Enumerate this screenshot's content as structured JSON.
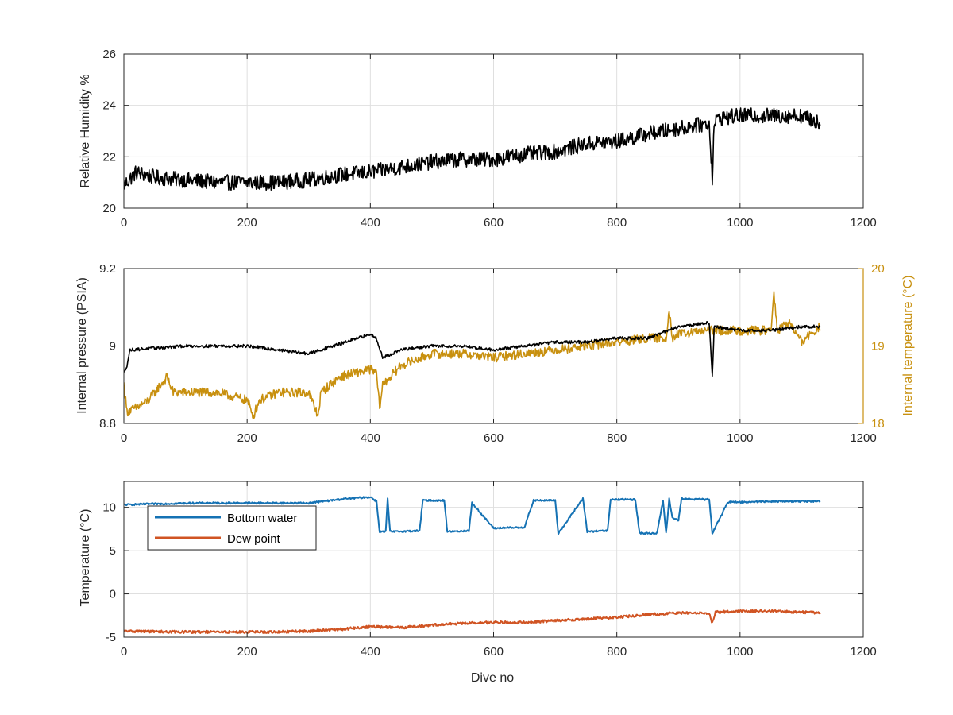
{
  "colors": {
    "humidity": "#000000",
    "pressure": "#000000",
    "internal_temperature": "#c8900f",
    "bottom_water": "#1572b4",
    "dew_point": "#d05423",
    "axis": "#262626",
    "grid": "#dfdfdf"
  },
  "chart_data": [
    {
      "type": "line",
      "title": "",
      "xlabel": "",
      "ylabel": "Relative Humidity %",
      "xlim": [
        0,
        1200
      ],
      "ylim": [
        20,
        26
      ],
      "xticks": [
        0,
        200,
        400,
        600,
        800,
        1000,
        1200
      ],
      "yticks": [
        20,
        22,
        24,
        26
      ],
      "grid": true,
      "series": [
        {
          "color": "#000000",
          "noise": 0.3,
          "x": [
            0,
            20,
            50,
            100,
            150,
            200,
            250,
            300,
            350,
            400,
            450,
            500,
            550,
            600,
            650,
            700,
            750,
            800,
            850,
            900,
            950,
            955,
            958,
            965,
            1000,
            1050,
            1100,
            1130
          ],
          "y": [
            20.9,
            21.4,
            21.2,
            21.1,
            21.0,
            21.0,
            21.0,
            21.1,
            21.3,
            21.4,
            21.6,
            21.8,
            21.9,
            21.9,
            22.1,
            22.2,
            22.5,
            22.6,
            22.9,
            23.1,
            23.3,
            21.2,
            23.3,
            23.5,
            23.6,
            23.6,
            23.6,
            23.3
          ]
        }
      ]
    },
    {
      "type": "line",
      "title": "",
      "xlabel": "",
      "ylabel": "Internal pressure (PSIA)",
      "ylabel_right": "Internal temperature (°C)",
      "xlim": [
        0,
        1200
      ],
      "ylim": [
        8.8,
        9.2
      ],
      "ylim_right": [
        18,
        20
      ],
      "xticks": [
        0,
        200,
        400,
        600,
        800,
        1000,
        1200
      ],
      "yticks": [
        8.8,
        9,
        9.2
      ],
      "yticks_right": [
        18,
        19,
        20
      ],
      "grid": true,
      "series": [
        {
          "axis": "right",
          "color": "#c8900f",
          "noise": 0.06,
          "x": [
            0,
            5,
            20,
            40,
            60,
            70,
            80,
            100,
            150,
            200,
            210,
            220,
            250,
            300,
            315,
            320,
            350,
            400,
            410,
            415,
            420,
            450,
            500,
            550,
            600,
            650,
            700,
            750,
            800,
            850,
            880,
            885,
            890,
            900,
            950,
            1000,
            1050,
            1055,
            1060,
            1080,
            1100,
            1130
          ],
          "y": [
            18.5,
            18.15,
            18.2,
            18.3,
            18.5,
            18.6,
            18.4,
            18.4,
            18.4,
            18.3,
            18.1,
            18.3,
            18.4,
            18.4,
            18.1,
            18.4,
            18.6,
            18.7,
            18.65,
            18.2,
            18.5,
            18.75,
            18.9,
            18.9,
            18.85,
            18.9,
            18.95,
            19.0,
            19.05,
            19.1,
            19.1,
            19.5,
            19.1,
            19.15,
            19.2,
            19.2,
            19.2,
            19.7,
            19.2,
            19.3,
            19.05,
            19.25
          ]
        },
        {
          "axis": "left",
          "color": "#000000",
          "noise": 0.004,
          "x": [
            0,
            5,
            10,
            100,
            200,
            300,
            320,
            400,
            410,
            420,
            450,
            500,
            550,
            600,
            650,
            700,
            750,
            800,
            850,
            900,
            950,
            955,
            958,
            1000,
            1050,
            1100,
            1130
          ],
          "y": [
            8.93,
            8.95,
            8.99,
            9.0,
            9.0,
            8.98,
            8.99,
            9.03,
            9.02,
            8.97,
            8.99,
            9.0,
            9.0,
            8.99,
            9.0,
            9.01,
            9.01,
            9.02,
            9.02,
            9.05,
            9.06,
            8.92,
            9.05,
            9.04,
            9.04,
            9.05,
            9.05
          ]
        }
      ]
    },
    {
      "type": "line",
      "title": "",
      "xlabel": "Dive no",
      "ylabel": "Temperature (°C)",
      "xlim": [
        0,
        1200
      ],
      "ylim": [
        -5,
        13
      ],
      "xticks": [
        0,
        200,
        400,
        600,
        800,
        1000,
        1200
      ],
      "yticks": [
        -5,
        0,
        5,
        10
      ],
      "grid": true,
      "legend": "top-left",
      "series": [
        {
          "name": "Bottom water",
          "color": "#1572b4",
          "noise": 0.1,
          "x": [
            0,
            50,
            120,
            200,
            300,
            360,
            400,
            410,
            415,
            425,
            428,
            432,
            440,
            480,
            485,
            520,
            525,
            560,
            565,
            600,
            650,
            665,
            700,
            705,
            745,
            752,
            785,
            790,
            830,
            837,
            865,
            875,
            880,
            885,
            890,
            900,
            905,
            950,
            955,
            980,
            1000,
            1050,
            1100,
            1130
          ],
          "y": [
            10.3,
            10.4,
            10.5,
            10.5,
            10.5,
            11.0,
            11.2,
            10.7,
            7.2,
            7.2,
            11.0,
            7.2,
            7.2,
            7.3,
            10.8,
            10.8,
            7.2,
            7.3,
            10.5,
            7.6,
            7.7,
            10.8,
            10.8,
            7.0,
            11.0,
            7.2,
            7.3,
            10.9,
            10.9,
            7.0,
            7.0,
            10.8,
            7.0,
            11.0,
            8.8,
            8.5,
            11.0,
            10.9,
            7.0,
            10.6,
            10.6,
            10.7,
            10.7,
            10.7
          ]
        },
        {
          "name": "Dew point",
          "color": "#d05423",
          "noise": 0.15,
          "x": [
            0,
            100,
            200,
            250,
            300,
            350,
            400,
            450,
            500,
            550,
            600,
            650,
            700,
            750,
            800,
            850,
            900,
            950,
            955,
            960,
            1000,
            1050,
            1100,
            1130
          ],
          "y": [
            -4.3,
            -4.4,
            -4.4,
            -4.4,
            -4.3,
            -4.1,
            -3.8,
            -3.9,
            -3.6,
            -3.4,
            -3.3,
            -3.3,
            -3.1,
            -2.9,
            -2.7,
            -2.4,
            -2.2,
            -2.2,
            -3.4,
            -2.1,
            -2.0,
            -2.0,
            -2.1,
            -2.2
          ]
        }
      ]
    }
  ]
}
